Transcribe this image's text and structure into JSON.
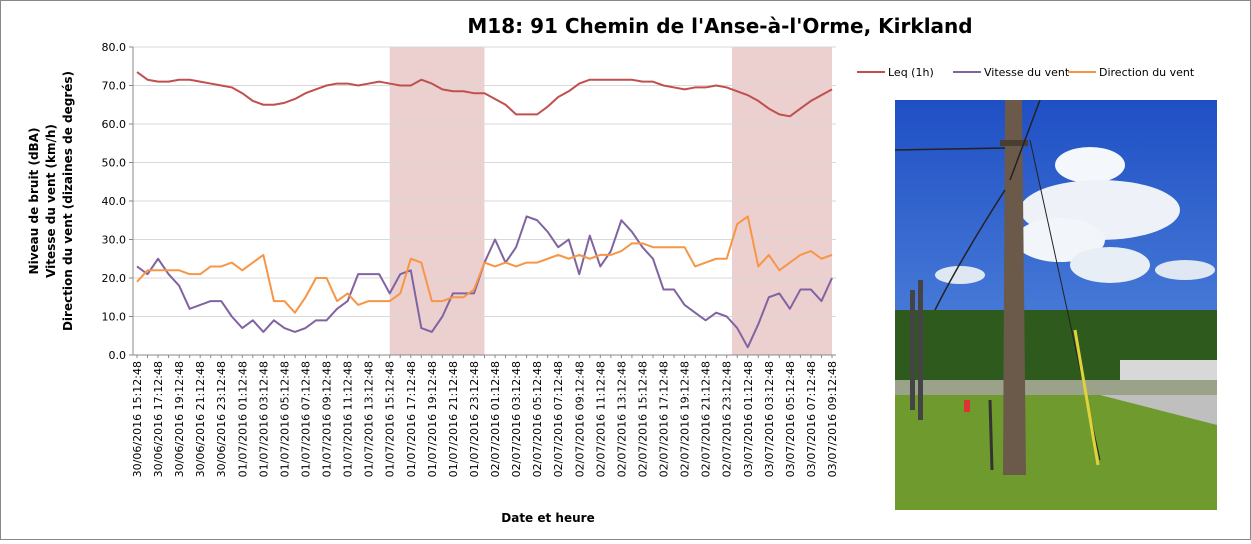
{
  "chart_data": {
    "type": "line",
    "title": "M18: 91 Chemin de l'Anse-à-l'Orme, Kirkland",
    "y_label": [
      "Niveau de bruit (dBA)",
      "Vitesse du vent (km/h)",
      "Direction du vent (dizaines de degrés)"
    ],
    "x_label": "Date et heure",
    "categories": [
      "30/06/2016 15:12:48",
      null,
      "30/06/2016 17:12:48",
      null,
      "30/06/2016 19:12:48",
      null,
      "30/06/2016 21:12:48",
      null,
      "30/06/2016 23:12:48",
      null,
      "01/07/2016 01:12:48",
      null,
      "01/07/2016 03:12:48",
      null,
      "01/07/2016 05:12:48",
      null,
      "01/07/2016 07:12:48",
      null,
      "01/07/2016 09:12:48",
      null,
      "01/07/2016 11:12:48",
      null,
      "01/07/2016 13:12:48",
      null,
      "01/07/2016 15:12:48",
      null,
      "01/07/2016 17:12:48",
      null,
      "01/07/2016 19:12:48",
      null,
      "01/07/2016 21:12:48",
      null,
      "01/07/2016 23:12:48",
      null,
      "02/07/2016 01:12:48",
      null,
      "02/07/2016 03:12:48",
      null,
      "02/07/2016 05:12:48",
      null,
      "02/07/2016 07:12:48",
      null,
      "02/07/2016 09:12:48",
      null,
      "02/07/2016 11:12:48",
      null,
      "02/07/2016 13:12:48",
      null,
      "02/07/2016 15:12:48",
      null,
      "02/07/2016 17:12:48",
      null,
      "02/07/2016 19:12:48",
      null,
      "02/07/2016 21:12:48",
      null,
      "02/07/2016 23:12:48",
      null,
      "03/07/2016 01:12:48",
      null,
      "03/07/2016 03:12:48",
      null,
      "03/07/2016 05:12:48",
      null,
      "03/07/2016 07:12:48",
      null,
      "03/07/2016 09:12:48"
    ],
    "series": [
      {
        "name": "Leq (1h)",
        "color": "#c0504d",
        "values": [
          73.5,
          71.5,
          71,
          71,
          71.5,
          71.5,
          71,
          70.5,
          70,
          69.5,
          68,
          66,
          65,
          65,
          65.5,
          66.5,
          68,
          69,
          70,
          70.5,
          70.5,
          70,
          70.5,
          71,
          70.5,
          70,
          70,
          71.5,
          70.5,
          69,
          68.5,
          68.5,
          68,
          68,
          66.5,
          65,
          62.5,
          62.5,
          62.5,
          64.5,
          67,
          68.5,
          70.5,
          71.5,
          71.5,
          71.5,
          71.5,
          71.5,
          71,
          71,
          70,
          69.5,
          69,
          69.5,
          69.5,
          70,
          69.5,
          68.5,
          67.5,
          66,
          64,
          62.5,
          62,
          64,
          66,
          67.5,
          69
        ]
      },
      {
        "name": "Vitesse du vent",
        "color": "#8064a2",
        "values": [
          23,
          21,
          25,
          21,
          18,
          12,
          13,
          14,
          14,
          10,
          7,
          9,
          6,
          9,
          7,
          6,
          7,
          9,
          9,
          12,
          14,
          21,
          21,
          21,
          16,
          21,
          22,
          7,
          6,
          10,
          16,
          16,
          16,
          24,
          30,
          24,
          28,
          36,
          35,
          32,
          28,
          30,
          21,
          31,
          23,
          27,
          35,
          32,
          28,
          25,
          17,
          17,
          13,
          11,
          9,
          11,
          10,
          7,
          2,
          8,
          15,
          16,
          12,
          17,
          17,
          14,
          20
        ]
      },
      {
        "name": "Direction du vent",
        "color": "#f79646",
        "values": [
          19,
          22,
          22,
          22,
          22,
          21,
          21,
          23,
          23,
          24,
          22,
          24,
          26,
          14,
          14,
          11,
          15,
          20,
          20,
          14,
          16,
          13,
          14,
          14,
          14,
          16,
          25,
          24,
          14,
          14,
          15,
          15,
          17,
          24,
          23,
          24,
          23,
          24,
          24,
          25,
          26,
          25,
          26,
          25,
          26,
          26,
          27,
          29,
          29,
          28,
          28,
          28,
          28,
          23,
          24,
          25,
          25,
          34,
          36,
          23,
          26,
          22,
          24,
          26,
          27,
          25,
          26
        ]
      }
    ],
    "shaded_ranges": [
      [
        24,
        33
      ],
      [
        56.5,
        66
      ]
    ],
    "shade_color": "#ecd0d0",
    "ylim": [
      0,
      80
    ],
    "yticks": [
      {
        "value": 0,
        "label": "0.0"
      },
      {
        "value": 10,
        "label": "10.0"
      },
      {
        "value": 20,
        "label": "20.0"
      },
      {
        "value": 30,
        "label": "30.0"
      },
      {
        "value": 40,
        "label": "40.0"
      },
      {
        "value": 50,
        "label": "50.0"
      },
      {
        "value": 60,
        "label": "60.0"
      },
      {
        "value": 70,
        "label": "70.0"
      },
      {
        "value": 80,
        "label": "80.0"
      }
    ],
    "grid": true,
    "legend": "top-right"
  }
}
